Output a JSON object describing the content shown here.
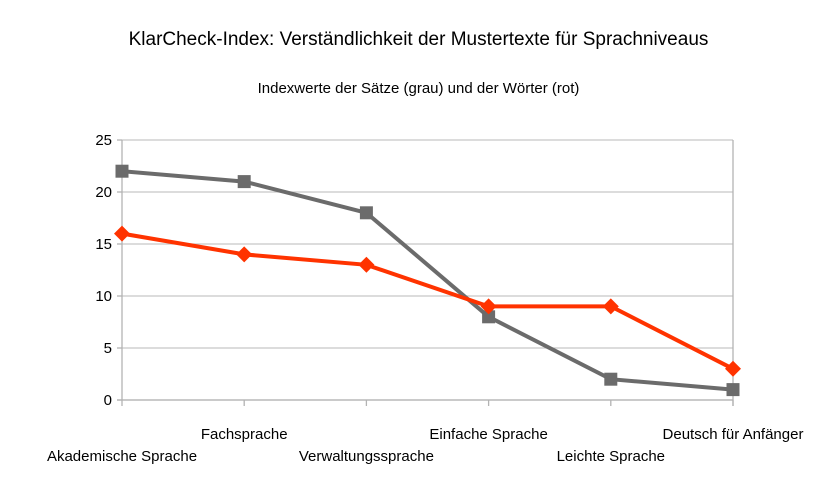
{
  "chart_data": {
    "type": "line",
    "title": "KlarCheck-Index: Verständlichkeit der Mustertexte für Sprachniveaus",
    "subtitle": "Indexwerte der Sätze (grau) und der Wörter (rot)",
    "categories": [
      "Akademische Sprache",
      "Fachsprache",
      "Verwaltungssprache",
      "Einfache Sprache",
      "Leichte Sprache",
      "Deutsch für Anfänger"
    ],
    "series": [
      {
        "name": "Sätze",
        "color": "#6B6B6B",
        "marker": "square",
        "values": [
          22,
          21,
          18,
          8,
          2,
          1
        ]
      },
      {
        "name": "Wörter",
        "color": "#FF3300",
        "marker": "diamond",
        "values": [
          16,
          14,
          13,
          9,
          9,
          3
        ]
      }
    ],
    "ylim": [
      0,
      25
    ],
    "yticks": [
      0,
      5,
      10,
      15,
      20,
      25
    ],
    "xlabel": "",
    "ylabel": "",
    "grid": true,
    "legend": "none",
    "grid_color": "#C6C6C6",
    "axis_color": "#B3B3B3",
    "text_color": "#000000",
    "background": "#FFFFFF"
  }
}
